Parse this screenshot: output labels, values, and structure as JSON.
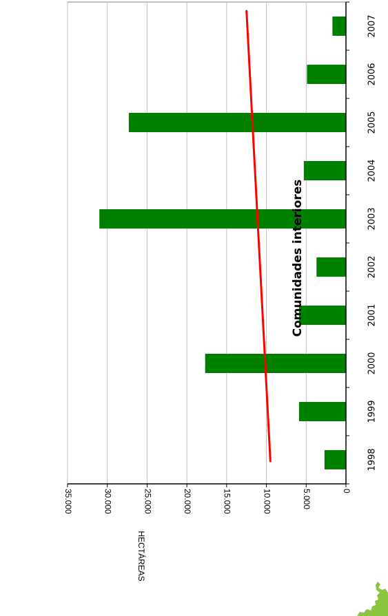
{
  "chart_data": {
    "type": "bar",
    "orientation": "rotated-90",
    "title": "Comunidades interiores",
    "ylabel": "HECTÁREAS",
    "xlabel": "",
    "categories": [
      "1998",
      "1999",
      "2000",
      "2001",
      "2002",
      "2003",
      "2004",
      "2005",
      "2006",
      "2007"
    ],
    "values": [
      2700,
      5900,
      17700,
      5900,
      3700,
      31000,
      5300,
      27300,
      4900,
      1700
    ],
    "ylim": [
      0,
      35000
    ],
    "yticks": [
      "0",
      "5.000",
      "10.000",
      "15.000",
      "20.000",
      "25.000",
      "30.000",
      "35.000"
    ],
    "trendline": {
      "start": 9500,
      "end": 12500,
      "color": "#ff0000"
    },
    "grid": true,
    "legend": "none",
    "colors": {
      "bar": "#008000",
      "trend": "#ff0000",
      "grid": "#c0c0c0",
      "axis": "#000000"
    }
  },
  "logo": {
    "icon": "green-map-icon",
    "color": "#8cc63f"
  }
}
